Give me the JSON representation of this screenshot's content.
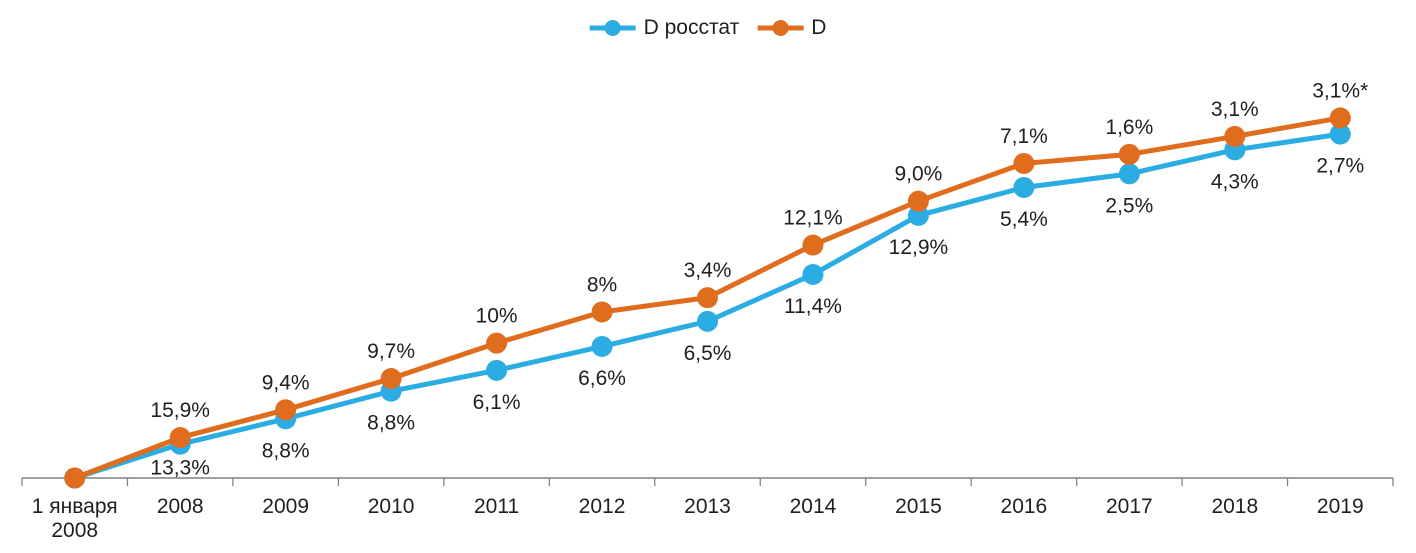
{
  "chart_data": {
    "type": "line",
    "title": "",
    "legend_position": "top-center",
    "grid": false,
    "decimal_separator": ",",
    "footnote_marker": "*",
    "categories": [
      "1 января\n2008",
      "2008",
      "2009",
      "2010",
      "2011",
      "2012",
      "2013",
      "2014",
      "2015",
      "2016",
      "2017",
      "2018",
      "2019"
    ],
    "series": [
      {
        "name": "D росстат",
        "color": "#2BACE2",
        "marker": "circle",
        "label_position": "below",
        "annual_growth_percent": [
          null,
          13.3,
          8.8,
          8.8,
          6.1,
          6.6,
          6.5,
          11.4,
          12.9,
          5.4,
          2.5,
          4.3,
          2.7
        ],
        "point_labels": [
          "",
          "13,3%",
          "8,8%",
          "8,8%",
          "6,1%",
          "6,6%",
          "6,5%",
          "11,4%",
          "12,9%",
          "5,4%",
          "2,5%",
          "4,3%",
          "2,7%"
        ],
        "cumulative_index": [
          1.0,
          1.133,
          1.2327,
          1.3412,
          1.423,
          1.5169,
          1.6155,
          1.7997,
          2.0318,
          2.1416,
          2.1951,
          2.2895,
          2.3513
        ]
      },
      {
        "name": "D",
        "color": "#E06C1D",
        "marker": "circle",
        "label_position": "above",
        "annual_growth_percent": [
          null,
          15.9,
          9.4,
          9.7,
          10,
          8,
          3.4,
          12.1,
          9.0,
          7.1,
          1.6,
          3.1,
          3.1
        ],
        "point_labels": [
          "",
          "15,9%",
          "9,4%",
          "9,7%",
          "10%",
          "8%",
          "3,4%",
          "12,1%",
          "9,0%",
          "7,1%",
          "1,6%",
          "3,1%",
          "3,1%*"
        ],
        "cumulative_index": [
          1.0,
          1.159,
          1.268,
          1.3909,
          1.53,
          1.6524,
          1.7086,
          1.9154,
          2.0877,
          2.236,
          2.2718,
          2.3422,
          2.4148
        ]
      }
    ],
    "axis": {
      "x_tick_count": 14,
      "baseline_index": 1.0,
      "max_index": 2.4148,
      "axis_color": "#808080",
      "text_color": "#1f1f1f"
    }
  }
}
